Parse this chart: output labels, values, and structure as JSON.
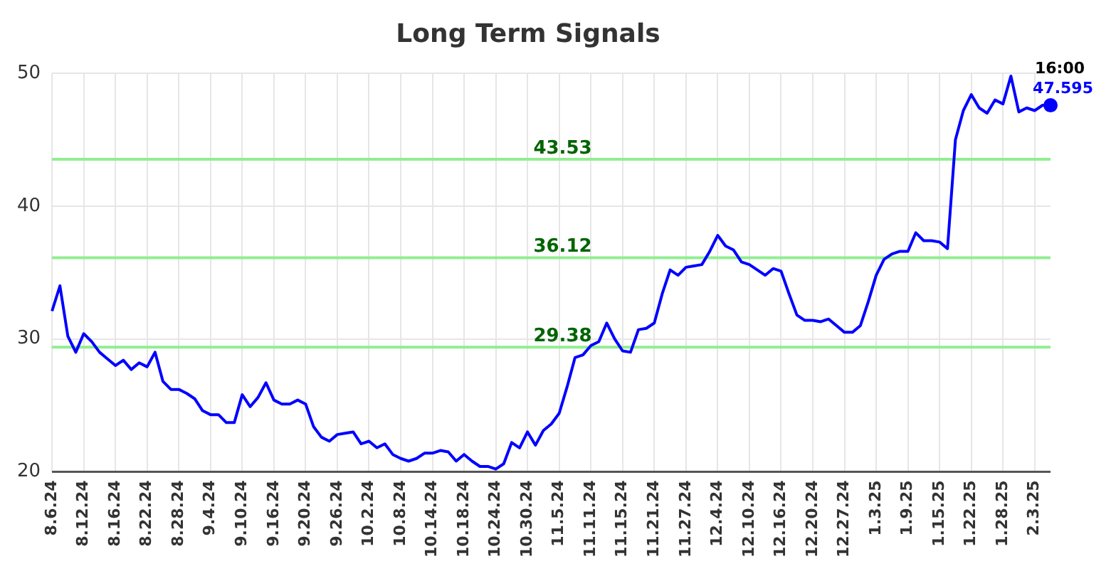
{
  "chart_data": {
    "type": "line",
    "title": "Long Term Signals",
    "categories": [
      "8.6.24",
      null,
      null,
      null,
      "8.12.24",
      null,
      null,
      null,
      "8.16.24",
      null,
      null,
      null,
      "8.22.24",
      null,
      null,
      null,
      "8.28.24",
      null,
      null,
      null,
      "9.4.24",
      null,
      null,
      null,
      "9.10.24",
      null,
      null,
      null,
      "9.16.24",
      null,
      null,
      null,
      "9.20.24",
      null,
      null,
      null,
      "9.26.24",
      null,
      null,
      null,
      "10.2.24",
      null,
      null,
      null,
      "10.8.24",
      null,
      null,
      null,
      "10.14.24",
      null,
      null,
      null,
      "10.18.24",
      null,
      null,
      null,
      "10.24.24",
      null,
      null,
      null,
      "10.30.24",
      null,
      null,
      null,
      "11.5.24",
      null,
      null,
      null,
      "11.11.24",
      null,
      null,
      null,
      "11.15.24",
      null,
      null,
      null,
      "11.21.24",
      null,
      null,
      null,
      "11.27.24",
      null,
      null,
      null,
      "12.4.24",
      null,
      null,
      null,
      "12.10.24",
      null,
      null,
      null,
      "12.16.24",
      null,
      null,
      null,
      "12.20.24",
      null,
      null,
      null,
      "12.27.24",
      null,
      null,
      null,
      "1.3.25",
      null,
      null,
      null,
      "1.9.25",
      null,
      null,
      null,
      "1.15.25",
      null,
      null,
      null,
      "1.22.25",
      null,
      null,
      null,
      "1.28.25",
      null,
      null,
      null,
      "2.3.25",
      null,
      null
    ],
    "series": [
      {
        "color": "#0000ff",
        "values": [
          32.1,
          34.0,
          30.2,
          29.0,
          30.4,
          29.8,
          29.0,
          28.5,
          28.0,
          28.4,
          27.7,
          28.2,
          27.9,
          29.0,
          26.8,
          26.2,
          26.2,
          25.9,
          25.5,
          24.6,
          24.3,
          24.3,
          23.7,
          23.7,
          25.8,
          24.9,
          25.6,
          26.7,
          25.4,
          25.1,
          25.1,
          25.4,
          25.1,
          23.4,
          22.6,
          22.3,
          22.8,
          22.9,
          23.0,
          22.1,
          22.3,
          21.8,
          22.1,
          21.3,
          21.0,
          20.8,
          21.0,
          21.4,
          21.4,
          21.6,
          21.5,
          20.8,
          21.3,
          20.8,
          20.4,
          20.4,
          20.2,
          20.6,
          22.2,
          21.8,
          23.0,
          22.0,
          23.1,
          23.6,
          24.4,
          26.4,
          28.6,
          28.8,
          29.5,
          29.8,
          31.2,
          30.0,
          29.1,
          29.0,
          30.7,
          30.8,
          31.2,
          33.4,
          35.2,
          34.8,
          35.4,
          35.5,
          35.6,
          36.6,
          37.8,
          37.0,
          36.7,
          35.8,
          35.6,
          35.2,
          34.8,
          35.3,
          35.1,
          33.4,
          31.8,
          31.4,
          31.4,
          31.3,
          31.5,
          31.0,
          30.5,
          30.5,
          31.0,
          32.8,
          34.8,
          36.0,
          36.4,
          36.6,
          36.6,
          38.0,
          37.4,
          37.4,
          37.3,
          36.8,
          45.0,
          47.2,
          48.4,
          47.4,
          47.0,
          48.0,
          47.7,
          49.8,
          47.1,
          47.4,
          47.2,
          47.6,
          47.595
        ],
        "value_labels": [
          null,
          null,
          null,
          null,
          null,
          null,
          null,
          null,
          null,
          null,
          null,
          null,
          null,
          null,
          null,
          null,
          null,
          null,
          null,
          null,
          null,
          null,
          null,
          null,
          null,
          null,
          null,
          null,
          null,
          null,
          null,
          null,
          null,
          null,
          null,
          null,
          null,
          null,
          null,
          null,
          null,
          null,
          null,
          null,
          null,
          null,
          null,
          null,
          null,
          null,
          null,
          null,
          null,
          null,
          null,
          null,
          null,
          null,
          null,
          null,
          null,
          null,
          null,
          null,
          null,
          null,
          null,
          null,
          null,
          null,
          null,
          null,
          null,
          null,
          null,
          null,
          null,
          null,
          null,
          null,
          null,
          null,
          null,
          null,
          null,
          null,
          null,
          null,
          null,
          null,
          null,
          null,
          null,
          null,
          null,
          null,
          null,
          null,
          null,
          null,
          null,
          null,
          null,
          null,
          null,
          null,
          null,
          null,
          null,
          null,
          null,
          null,
          null,
          null,
          null,
          null,
          null,
          null,
          null,
          null,
          null,
          null,
          null,
          null,
          null,
          null,
          "47.595"
        ]
      }
    ],
    "annotations": [
      {
        "text": "16:00",
        "y": 47.595
      }
    ],
    "ref_lines": [
      {
        "axis": "y",
        "value": 43.53,
        "label": "43.53",
        "color": "#90ee90"
      },
      {
        "axis": "y",
        "value": 36.12,
        "label": "36.12",
        "color": "#90ee90"
      },
      {
        "axis": "y",
        "value": 29.38,
        "label": "29.38",
        "color": "#90ee90"
      }
    ],
    "ylim": [
      20,
      50
    ],
    "yticks": [
      20,
      30,
      40,
      50
    ],
    "grid": true,
    "legend": false,
    "marker": "none",
    "line_style": "solid"
  }
}
